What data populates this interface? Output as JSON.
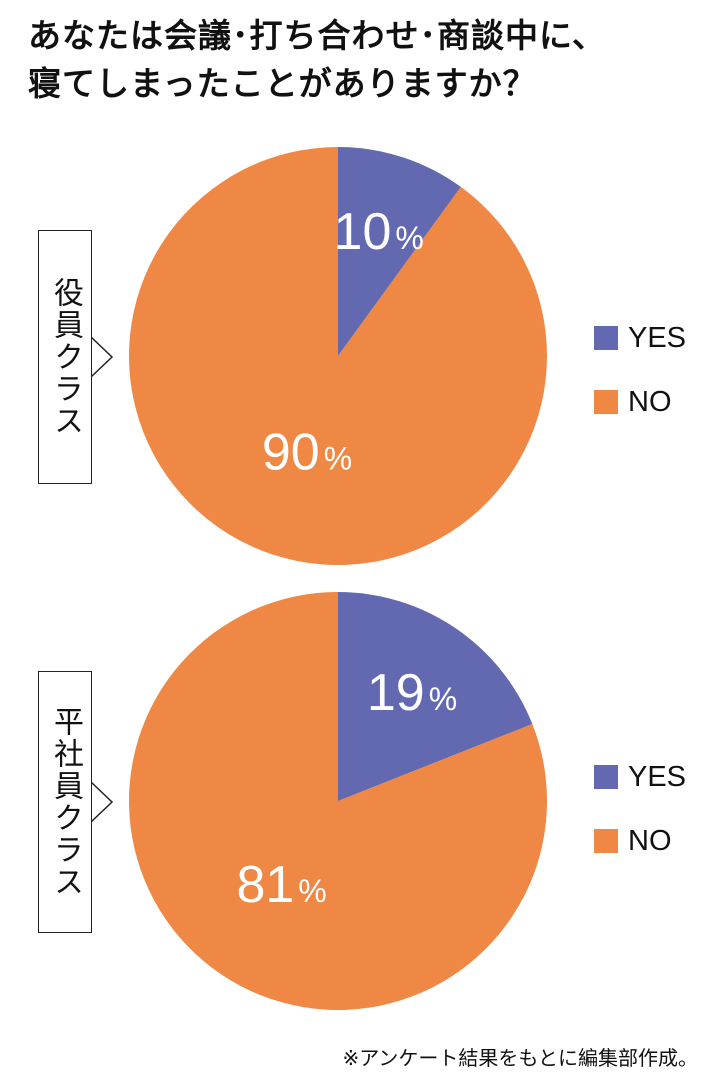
{
  "title": {
    "line1": "あなたは会議･打ち合わせ･商談中に、",
    "line2": "寝てしまったことがありますか？"
  },
  "legend": {
    "yes_label": "YES",
    "no_label": "NO"
  },
  "colors": {
    "yes": "#6269B0",
    "no": "#EF8745"
  },
  "footnote": "※アンケート結果をもとに編集部作成。",
  "chart_data": [
    {
      "type": "pie",
      "group_label": "役員クラス",
      "slices": [
        {
          "name": "YES",
          "value": 10,
          "label": "10%"
        },
        {
          "name": "NO",
          "value": 90,
          "label": "90%"
        }
      ]
    },
    {
      "type": "pie",
      "group_label": "平社員クラス",
      "slices": [
        {
          "name": "YES",
          "value": 19,
          "label": "19%"
        },
        {
          "name": "NO",
          "value": 81,
          "label": "81%"
        }
      ]
    }
  ]
}
